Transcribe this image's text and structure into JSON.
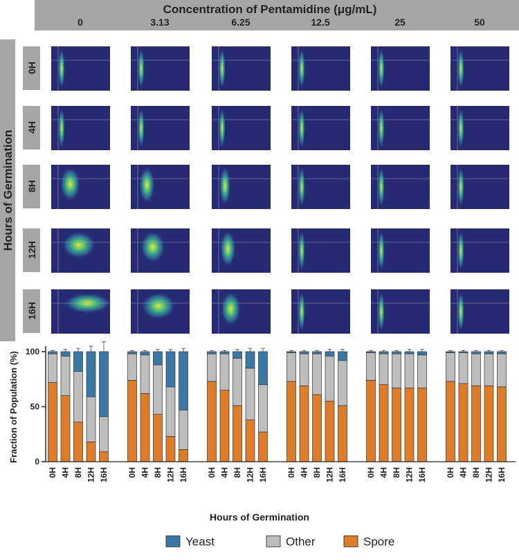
{
  "header": {
    "title": "Concentration of Pentamidine (μg/mL)",
    "concentrations": [
      "0",
      "3.13",
      "6.25",
      "12.5",
      "25",
      "50"
    ]
  },
  "side": {
    "title": "Hours of Germination",
    "rows": [
      "0H",
      "4H",
      "8H",
      "12H",
      "16H"
    ]
  },
  "chart_data": {
    "type": "stacked-bar",
    "y_label": "Fraction of Population  (%)",
    "x_label": "Hours of Germination",
    "categories": [
      "0H",
      "4H",
      "8H",
      "12H",
      "16H"
    ],
    "ylim": [
      0,
      105
    ],
    "yticks": [
      0,
      50,
      100
    ],
    "series": [
      {
        "name": "Yeast",
        "color": "#3a78a8",
        "values": [
          [
            2,
            4,
            18,
            41,
            59
          ],
          [
            2,
            3,
            12,
            32,
            53
          ],
          [
            2,
            2,
            6,
            15,
            30
          ],
          [
            1,
            2,
            2,
            4,
            8
          ],
          [
            1,
            2,
            2,
            2,
            3
          ],
          [
            1,
            1,
            2,
            2,
            2
          ]
        ],
        "errors": [
          [
            1,
            2,
            3,
            5,
            9
          ],
          [
            1,
            1,
            2,
            2,
            3
          ],
          [
            1,
            1,
            2,
            3,
            3
          ],
          [
            1,
            1,
            1,
            2,
            2
          ],
          [
            1,
            1,
            1,
            2,
            2
          ],
          [
            1,
            1,
            1,
            1,
            1
          ]
        ]
      },
      {
        "name": "Other",
        "color": "#bdbdbd",
        "values": [
          [
            26,
            36,
            46,
            41,
            32
          ],
          [
            24,
            35,
            45,
            45,
            36
          ],
          [
            25,
            33,
            43,
            47,
            43
          ],
          [
            26,
            29,
            37,
            41,
            41
          ],
          [
            25,
            28,
            31,
            31,
            30
          ],
          [
            26,
            28,
            29,
            29,
            30
          ]
        ],
        "errors": [
          [
            1,
            2,
            3,
            2,
            3
          ],
          [
            1,
            1,
            2,
            2,
            2
          ],
          [
            1,
            1,
            2,
            2,
            2
          ],
          [
            1,
            1,
            1,
            1,
            1
          ],
          [
            1,
            1,
            1,
            1,
            1
          ],
          [
            1,
            1,
            1,
            1,
            1
          ]
        ]
      },
      {
        "name": "Spore",
        "color": "#e07b27",
        "values": [
          [
            72,
            60,
            36,
            18,
            9
          ],
          [
            74,
            62,
            43,
            23,
            11
          ],
          [
            73,
            65,
            51,
            38,
            27
          ],
          [
            73,
            69,
            61,
            55,
            51
          ],
          [
            74,
            70,
            67,
            67,
            67
          ],
          [
            73,
            71,
            69,
            69,
            68
          ]
        ],
        "errors": [
          [
            2,
            3,
            5,
            5,
            7
          ],
          [
            2,
            2,
            3,
            3,
            2
          ],
          [
            2,
            2,
            3,
            6,
            6
          ],
          [
            2,
            2,
            2,
            2,
            2
          ],
          [
            2,
            2,
            2,
            3,
            3
          ],
          [
            2,
            2,
            2,
            2,
            2
          ]
        ]
      }
    ]
  }
}
